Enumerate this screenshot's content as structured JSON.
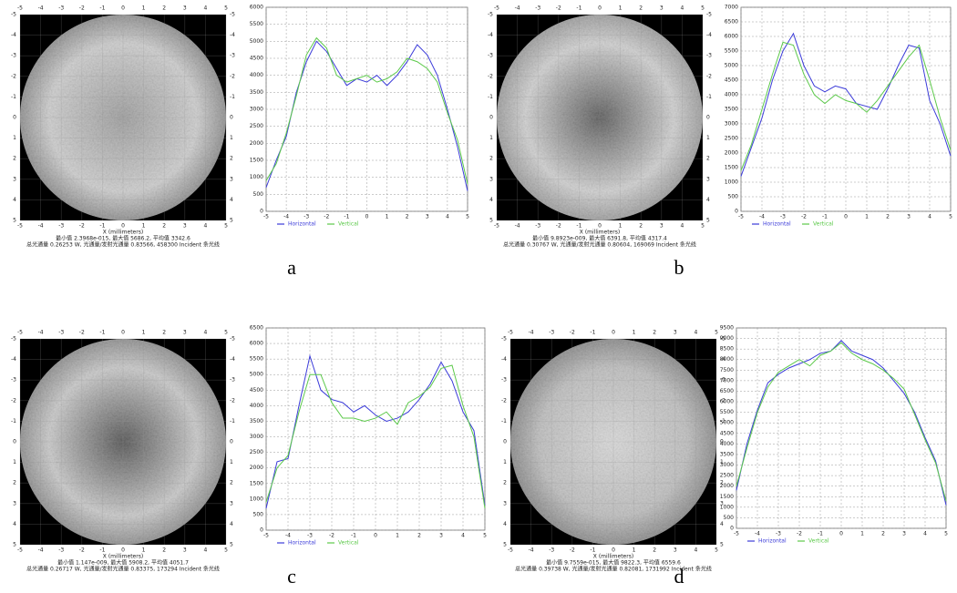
{
  "chart_data": [
    {
      "type": "map",
      "caption": "a",
      "xlabel": "X (millimeters)",
      "xlim": [
        -5,
        5
      ],
      "ylim": [
        -5,
        5
      ],
      "y_inverted": true,
      "xticks": [
        -5,
        -4,
        -3,
        -2,
        -1,
        0,
        1,
        2,
        3,
        4,
        5
      ],
      "yticks": [
        -5,
        -4,
        -3,
        -2,
        -1,
        0,
        1,
        2,
        3,
        4,
        5
      ],
      "grid": true,
      "gradient": [
        "#9a9a9a",
        "#cdcdcd",
        "#8a8a8a"
      ],
      "stats": [
        "最小值 2.3968e-015, 最大值 5686.2, 平均值 3342.6",
        "总光通量 0.26253 W, 光通量/发射光通量 0.83566, 458300 Incident 条光线"
      ]
    },
    {
      "type": "line",
      "xlim": [
        -5,
        5
      ],
      "ylim": [
        0,
        6000
      ],
      "xticks": [
        -5,
        -4,
        -3,
        -2,
        -1,
        0,
        1,
        2,
        3,
        4,
        5
      ],
      "yticks": [
        0,
        500,
        1000,
        1500,
        2000,
        2500,
        3000,
        3500,
        4000,
        4500,
        5000,
        5500,
        6000
      ],
      "grid": true,
      "legend": "bottom",
      "x": [
        -5,
        -4.5,
        -4,
        -3.5,
        -3,
        -2.5,
        -2,
        -1.5,
        -1,
        -0.5,
        0,
        0.5,
        1,
        1.5,
        2,
        2.5,
        3,
        3.5,
        4,
        4.5,
        5
      ],
      "series": [
        {
          "name": "Horizontal",
          "color": "#3b3bd9",
          "values": [
            700,
            1500,
            2200,
            3500,
            4400,
            5000,
            4700,
            4200,
            3700,
            3900,
            3800,
            4000,
            3700,
            4000,
            4400,
            4900,
            4600,
            4000,
            3000,
            1900,
            600
          ]
        },
        {
          "name": "Vertical",
          "color": "#5cc94a",
          "values": [
            900,
            1400,
            2300,
            3400,
            4600,
            5100,
            4800,
            4000,
            3800,
            3900,
            4000,
            3800,
            3900,
            4100,
            4500,
            4400,
            4200,
            3800,
            2900,
            2100,
            800
          ]
        }
      ]
    },
    {
      "type": "map",
      "caption": "b",
      "xlabel": "X (millimeters)",
      "xlim": [
        -5,
        5
      ],
      "ylim": [
        -5,
        5
      ],
      "y_inverted": true,
      "xticks": [
        -5,
        -4,
        -3,
        -2,
        -1,
        0,
        1,
        2,
        3,
        4,
        5
      ],
      "yticks": [
        -5,
        -4,
        -3,
        -2,
        -1,
        0,
        1,
        2,
        3,
        4,
        5
      ],
      "grid": true,
      "gradient": [
        "#525252",
        "#d0d0d0",
        "#9a9a9a"
      ],
      "stats": [
        "最小值 9.8923e-009, 最大值 6391.8, 平均值 4317.4",
        "总光通量 0.30767 W, 光通量/发射光通量 0.80604, 169069 Incident 条光线"
      ]
    },
    {
      "type": "line",
      "xlim": [
        -5,
        5
      ],
      "ylim": [
        0,
        7000
      ],
      "xticks": [
        -5,
        -4,
        -3,
        -2,
        -1,
        0,
        1,
        2,
        3,
        4,
        5
      ],
      "yticks": [
        0,
        500,
        1000,
        1500,
        2000,
        2500,
        3000,
        3500,
        4000,
        4500,
        5000,
        5500,
        6000,
        6500,
        7000
      ],
      "grid": true,
      "legend": "bottom",
      "x": [
        -5,
        -4.5,
        -4,
        -3.5,
        -3,
        -2.5,
        -2,
        -1.5,
        -1,
        -0.5,
        0,
        0.5,
        1,
        1.5,
        2,
        2.5,
        3,
        3.5,
        4,
        4.5,
        5
      ],
      "series": [
        {
          "name": "Horizontal",
          "color": "#3b3bd9",
          "values": [
            1200,
            2200,
            3200,
            4500,
            5500,
            6100,
            5000,
            4300,
            4100,
            4300,
            4200,
            3700,
            3600,
            3500,
            4200,
            5000,
            5700,
            5600,
            3800,
            3000,
            1900
          ]
        },
        {
          "name": "Vertical",
          "color": "#5cc94a",
          "values": [
            1400,
            2300,
            3500,
            4700,
            5800,
            5700,
            4700,
            4000,
            3700,
            4000,
            3800,
            3700,
            3400,
            3800,
            4300,
            4800,
            5300,
            5700,
            4500,
            3200,
            2100
          ]
        }
      ]
    },
    {
      "type": "map",
      "caption": "c",
      "xlabel": "X (millimeters)",
      "xlim": [
        -5,
        5
      ],
      "ylim": [
        -5,
        5
      ],
      "y_inverted": true,
      "xticks": [
        -5,
        -4,
        -3,
        -2,
        -1,
        0,
        1,
        2,
        3,
        4,
        5
      ],
      "yticks": [
        -5,
        -4,
        -3,
        -2,
        -1,
        0,
        1,
        2,
        3,
        4,
        5
      ],
      "grid": true,
      "gradient": [
        "#4a4a4a",
        "#c8c8c8",
        "#8a8a8a"
      ],
      "stats": [
        "最小值 1.147e-009, 最大值 5908.2, 平均值 4051.7",
        "总光通量 0.26717 W, 光通量/发射光通量 0.83375, 173294 Incident 条光线"
      ]
    },
    {
      "type": "line",
      "xlim": [
        -5,
        5
      ],
      "ylim": [
        0,
        6500
      ],
      "xticks": [
        -5,
        -4,
        -3,
        -2,
        -1,
        0,
        1,
        2,
        3,
        4,
        5
      ],
      "yticks": [
        0,
        500,
        1000,
        1500,
        2000,
        2500,
        3000,
        3500,
        4000,
        4500,
        5000,
        5500,
        6000,
        6500
      ],
      "grid": true,
      "legend": "bottom",
      "x": [
        -5,
        -4.5,
        -4,
        -3.5,
        -3,
        -2.5,
        -2,
        -1.5,
        -1,
        -0.5,
        0,
        0.5,
        1,
        1.5,
        2,
        2.5,
        3,
        3.5,
        4,
        4.5,
        5
      ],
      "series": [
        {
          "name": "Horizontal",
          "color": "#3b3bd9",
          "values": [
            700,
            2200,
            2300,
            4000,
            5600,
            4500,
            4200,
            4100,
            3800,
            4000,
            3700,
            3500,
            3600,
            3800,
            4200,
            4700,
            5400,
            4800,
            3800,
            3200,
            800
          ]
        },
        {
          "name": "Vertical",
          "color": "#5cc94a",
          "values": [
            900,
            2000,
            2400,
            3800,
            5000,
            5000,
            4100,
            3600,
            3600,
            3500,
            3600,
            3800,
            3400,
            4100,
            4300,
            4600,
            5200,
            5300,
            4000,
            3000,
            700
          ]
        }
      ]
    },
    {
      "type": "map",
      "caption": "d",
      "xlabel": "X (millimeters)",
      "xlim": [
        -5,
        5
      ],
      "ylim": [
        -5,
        5
      ],
      "y_inverted": true,
      "xticks": [
        -5,
        -4,
        -3,
        -2,
        -1,
        0,
        1,
        2,
        3,
        4,
        5
      ],
      "yticks": [
        -5,
        -4,
        -3,
        -2,
        -1,
        0,
        1,
        2,
        3,
        4,
        5
      ],
      "grid": true,
      "gradient": [
        "#dadada",
        "#bdbdbd",
        "#858585"
      ],
      "stats": [
        "最小值 9.7559e-015, 最大值 9822.3, 平均值 6559.6",
        "总光通量 0.39738 W, 光通量/发射光通量 0.82081, 1731992 Incident 条光线"
      ]
    },
    {
      "type": "line",
      "xlim": [
        -5,
        5
      ],
      "ylim": [
        0,
        9500
      ],
      "xticks": [
        -5,
        -4,
        -3,
        -2,
        -1,
        0,
        1,
        2,
        3,
        4,
        5
      ],
      "yticks": [
        0,
        500,
        1000,
        1500,
        2000,
        2500,
        3000,
        3500,
        4000,
        4500,
        5000,
        5500,
        6000,
        6500,
        7000,
        7500,
        8000,
        8500,
        9000,
        9500
      ],
      "grid": true,
      "legend": "bottom",
      "x": [
        -5,
        -4.5,
        -4,
        -3.5,
        -3,
        -2.5,
        -2,
        -1.5,
        -1,
        -0.5,
        0,
        0.5,
        1,
        1.5,
        2,
        2.5,
        3,
        3.5,
        4,
        4.5,
        5
      ],
      "series": [
        {
          "name": "Horizontal",
          "color": "#3b3bd9",
          "values": [
            1800,
            4000,
            5600,
            6900,
            7300,
            7600,
            7800,
            8000,
            8300,
            8400,
            8900,
            8400,
            8200,
            8000,
            7600,
            7000,
            6400,
            5500,
            4300,
            3200,
            1100
          ]
        },
        {
          "name": "Vertical",
          "color": "#5cc94a",
          "values": [
            2000,
            3800,
            5500,
            6700,
            7400,
            7700,
            8000,
            7700,
            8200,
            8400,
            8800,
            8300,
            8000,
            7800,
            7500,
            7100,
            6600,
            5400,
            4200,
            3100,
            1300
          ]
        }
      ]
    }
  ]
}
